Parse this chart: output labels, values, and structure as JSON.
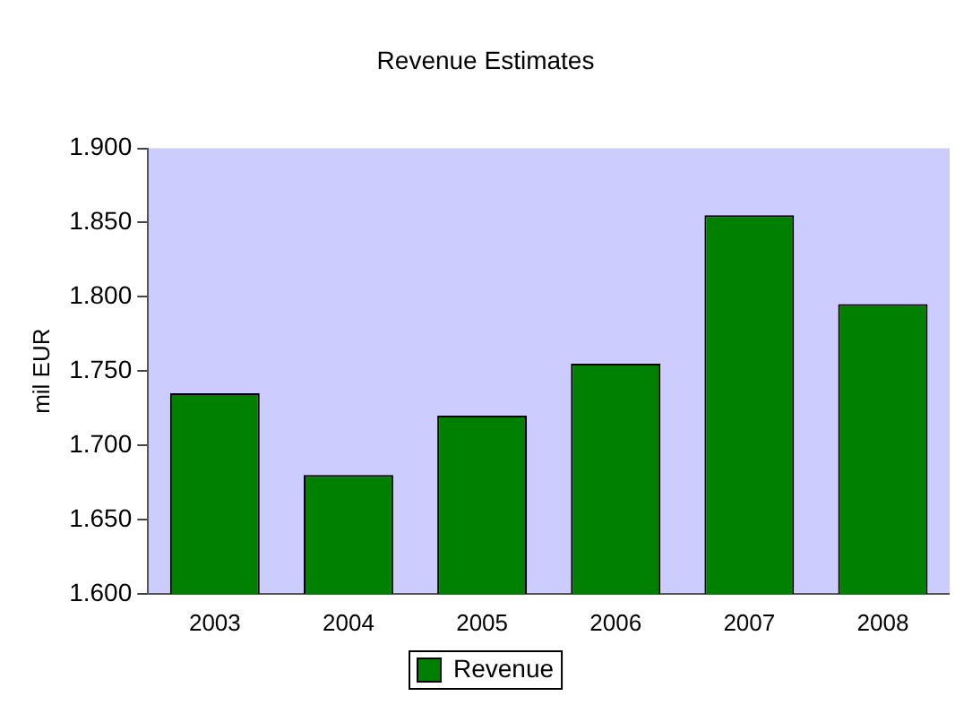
{
  "chart_data": {
    "type": "bar",
    "title": "Revenue Estimates",
    "ylabel": "mil EUR",
    "categories": [
      "2003",
      "2004",
      "2005",
      "2006",
      "2007",
      "2008"
    ],
    "series": [
      {
        "name": "Revenue",
        "color": "#008000",
        "values": [
          1735,
          1680,
          1720,
          1755,
          1855,
          1795
        ]
      }
    ],
    "ylim": [
      1600,
      1900
    ],
    "yticks": [
      {
        "value": 1600,
        "label": "1.600"
      },
      {
        "value": 1650,
        "label": "1.650"
      },
      {
        "value": 1700,
        "label": "1.700"
      },
      {
        "value": 1750,
        "label": "1.750"
      },
      {
        "value": 1800,
        "label": "1.800"
      },
      {
        "value": 1850,
        "label": "1.850"
      },
      {
        "value": 1900,
        "label": "1.900"
      }
    ],
    "grid": false,
    "legend": "bottom"
  }
}
